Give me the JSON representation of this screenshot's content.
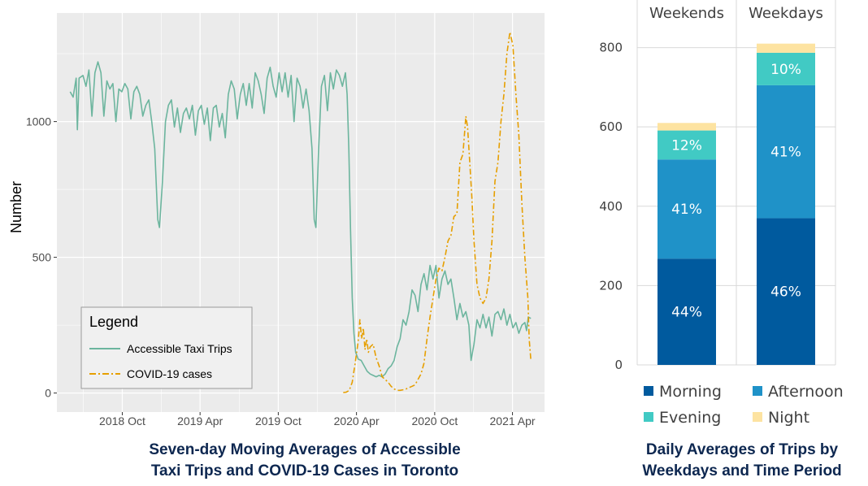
{
  "chart_data": [
    {
      "type": "line",
      "title": "Seven-day Moving Averages of Accessible Taxi Trips and COVID-19 Cases in Toronto",
      "ylabel": "Number",
      "xlabel": "",
      "x_tick_labels": [
        "2018 Oct",
        "2019 Apr",
        "2019 Oct",
        "2020 Apr",
        "2020 Oct",
        "2021 Apr"
      ],
      "y_ticks": [
        0,
        500,
        1000
      ],
      "xlim": [
        "2018-05-01",
        "2021-06-15"
      ],
      "ylim": [
        -70,
        1400
      ],
      "grid": true,
      "legend": {
        "title": "Legend",
        "position": "bottom-left"
      },
      "series": [
        {
          "name": "Accessible Taxi Trips",
          "color": "#6cb59e",
          "style": "solid",
          "points": [
            [
              "2018-06-01",
              1110
            ],
            [
              "2018-06-08",
              1090
            ],
            [
              "2018-06-15",
              1160
            ],
            [
              "2018-06-18",
              970
            ],
            [
              "2018-06-22",
              1160
            ],
            [
              "2018-07-01",
              1170
            ],
            [
              "2018-07-08",
              1130
            ],
            [
              "2018-07-15",
              1190
            ],
            [
              "2018-07-22",
              1020
            ],
            [
              "2018-07-29",
              1180
            ],
            [
              "2018-08-05",
              1220
            ],
            [
              "2018-08-12",
              1180
            ],
            [
              "2018-08-19",
              1020
            ],
            [
              "2018-08-26",
              1150
            ],
            [
              "2018-09-02",
              1120
            ],
            [
              "2018-09-09",
              1140
            ],
            [
              "2018-09-16",
              1000
            ],
            [
              "2018-09-23",
              1120
            ],
            [
              "2018-09-30",
              1110
            ],
            [
              "2018-10-07",
              1140
            ],
            [
              "2018-10-14",
              1120
            ],
            [
              "2018-10-21",
              1010
            ],
            [
              "2018-10-28",
              1110
            ],
            [
              "2018-11-04",
              1130
            ],
            [
              "2018-11-11",
              1100
            ],
            [
              "2018-11-18",
              1020
            ],
            [
              "2018-11-25",
              1060
            ],
            [
              "2018-12-02",
              1080
            ],
            [
              "2018-12-09",
              1000
            ],
            [
              "2018-12-16",
              900
            ],
            [
              "2018-12-23",
              640
            ],
            [
              "2018-12-27",
              610
            ],
            [
              "2019-01-03",
              780
            ],
            [
              "2019-01-10",
              1000
            ],
            [
              "2019-01-17",
              1060
            ],
            [
              "2019-01-24",
              1080
            ],
            [
              "2019-01-31",
              980
            ],
            [
              "2019-02-07",
              1050
            ],
            [
              "2019-02-14",
              960
            ],
            [
              "2019-02-21",
              1030
            ],
            [
              "2019-02-28",
              1050
            ],
            [
              "2019-03-07",
              1010
            ],
            [
              "2019-03-14",
              1060
            ],
            [
              "2019-03-21",
              950
            ],
            [
              "2019-03-28",
              1040
            ],
            [
              "2019-04-04",
              1060
            ],
            [
              "2019-04-11",
              990
            ],
            [
              "2019-04-18",
              1050
            ],
            [
              "2019-04-25",
              930
            ],
            [
              "2019-05-02",
              1050
            ],
            [
              "2019-05-09",
              1060
            ],
            [
              "2019-05-16",
              980
            ],
            [
              "2019-05-23",
              1030
            ],
            [
              "2019-05-30",
              940
            ],
            [
              "2019-06-06",
              1100
            ],
            [
              "2019-06-13",
              1150
            ],
            [
              "2019-06-20",
              1120
            ],
            [
              "2019-06-27",
              1010
            ],
            [
              "2019-07-04",
              1100
            ],
            [
              "2019-07-11",
              1140
            ],
            [
              "2019-07-18",
              1060
            ],
            [
              "2019-07-25",
              1140
            ],
            [
              "2019-08-01",
              1050
            ],
            [
              "2019-08-08",
              1180
            ],
            [
              "2019-08-15",
              1150
            ],
            [
              "2019-08-22",
              1100
            ],
            [
              "2019-08-29",
              1030
            ],
            [
              "2019-09-05",
              1160
            ],
            [
              "2019-09-12",
              1200
            ],
            [
              "2019-09-19",
              1130
            ],
            [
              "2019-09-26",
              1090
            ],
            [
              "2019-10-03",
              1180
            ],
            [
              "2019-10-10",
              1110
            ],
            [
              "2019-10-17",
              1180
            ],
            [
              "2019-10-24",
              1090
            ],
            [
              "2019-10-31",
              1170
            ],
            [
              "2019-11-07",
              1000
            ],
            [
              "2019-11-14",
              1160
            ],
            [
              "2019-11-21",
              1130
            ],
            [
              "2019-11-28",
              1050
            ],
            [
              "2019-12-05",
              1120
            ],
            [
              "2019-12-12",
              1040
            ],
            [
              "2019-12-19",
              900
            ],
            [
              "2019-12-24",
              640
            ],
            [
              "2019-12-28",
              610
            ],
            [
              "2020-01-03",
              880
            ],
            [
              "2020-01-10",
              1130
            ],
            [
              "2020-01-17",
              1170
            ],
            [
              "2020-01-24",
              1040
            ],
            [
              "2020-01-31",
              1180
            ],
            [
              "2020-02-07",
              1120
            ],
            [
              "2020-02-14",
              1190
            ],
            [
              "2020-02-21",
              1170
            ],
            [
              "2020-02-28",
              1130
            ],
            [
              "2020-03-06",
              1180
            ],
            [
              "2020-03-10",
              1100
            ],
            [
              "2020-03-14",
              900
            ],
            [
              "2020-03-18",
              600
            ],
            [
              "2020-03-22",
              350
            ],
            [
              "2020-03-26",
              220
            ],
            [
              "2020-03-30",
              150
            ],
            [
              "2020-04-05",
              125
            ],
            [
              "2020-04-12",
              120
            ],
            [
              "2020-04-19",
              100
            ],
            [
              "2020-04-26",
              80
            ],
            [
              "2020-05-03",
              70
            ],
            [
              "2020-05-10",
              65
            ],
            [
              "2020-05-17",
              60
            ],
            [
              "2020-05-24",
              65
            ],
            [
              "2020-05-31",
              60
            ],
            [
              "2020-06-07",
              70
            ],
            [
              "2020-06-14",
              90
            ],
            [
              "2020-06-21",
              100
            ],
            [
              "2020-06-28",
              120
            ],
            [
              "2020-07-05",
              170
            ],
            [
              "2020-07-12",
              200
            ],
            [
              "2020-07-19",
              270
            ],
            [
              "2020-07-26",
              250
            ],
            [
              "2020-08-02",
              300
            ],
            [
              "2020-08-09",
              380
            ],
            [
              "2020-08-16",
              360
            ],
            [
              "2020-08-23",
              300
            ],
            [
              "2020-08-30",
              400
            ],
            [
              "2020-09-06",
              440
            ],
            [
              "2020-09-13",
              380
            ],
            [
              "2020-09-20",
              470
            ],
            [
              "2020-09-27",
              420
            ],
            [
              "2020-10-04",
              470
            ],
            [
              "2020-10-11",
              350
            ],
            [
              "2020-10-18",
              420
            ],
            [
              "2020-10-25",
              450
            ],
            [
              "2020-11-01",
              400
            ],
            [
              "2020-11-08",
              420
            ],
            [
              "2020-11-15",
              350
            ],
            [
              "2020-11-22",
              270
            ],
            [
              "2020-11-29",
              330
            ],
            [
              "2020-12-06",
              280
            ],
            [
              "2020-12-13",
              300
            ],
            [
              "2020-12-20",
              250
            ],
            [
              "2020-12-25",
              120
            ],
            [
              "2021-01-01",
              180
            ],
            [
              "2021-01-08",
              270
            ],
            [
              "2021-01-15",
              240
            ],
            [
              "2021-01-22",
              290
            ],
            [
              "2021-01-29",
              240
            ],
            [
              "2021-02-05",
              280
            ],
            [
              "2021-02-12",
              210
            ],
            [
              "2021-02-19",
              290
            ],
            [
              "2021-02-26",
              300
            ],
            [
              "2021-03-05",
              270
            ],
            [
              "2021-03-12",
              310
            ],
            [
              "2021-03-19",
              250
            ],
            [
              "2021-03-26",
              290
            ],
            [
              "2021-04-02",
              240
            ],
            [
              "2021-04-09",
              260
            ],
            [
              "2021-04-16",
              220
            ],
            [
              "2021-04-23",
              250
            ],
            [
              "2021-04-30",
              260
            ],
            [
              "2021-05-04",
              230
            ],
            [
              "2021-05-08",
              280
            ],
            [
              "2021-05-14",
              275
            ]
          ]
        },
        {
          "name": "COVID-19 cases",
          "color": "#e69f00",
          "style": "dashdot",
          "points": [
            [
              "2020-03-01",
              2
            ],
            [
              "2020-03-08",
              3
            ],
            [
              "2020-03-15",
              10
            ],
            [
              "2020-03-22",
              40
            ],
            [
              "2020-03-29",
              110
            ],
            [
              "2020-04-05",
              190
            ],
            [
              "2020-04-09",
              270
            ],
            [
              "2020-04-13",
              200
            ],
            [
              "2020-04-17",
              240
            ],
            [
              "2020-04-21",
              160
            ],
            [
              "2020-04-25",
              200
            ],
            [
              "2020-04-29",
              150
            ],
            [
              "2020-05-03",
              170
            ],
            [
              "2020-05-10",
              180
            ],
            [
              "2020-05-17",
              130
            ],
            [
              "2020-05-24",
              100
            ],
            [
              "2020-05-31",
              60
            ],
            [
              "2020-06-07",
              50
            ],
            [
              "2020-06-14",
              40
            ],
            [
              "2020-06-21",
              25
            ],
            [
              "2020-06-28",
              15
            ],
            [
              "2020-07-05",
              10
            ],
            [
              "2020-07-12",
              10
            ],
            [
              "2020-07-19",
              12
            ],
            [
              "2020-07-26",
              15
            ],
            [
              "2020-08-02",
              20
            ],
            [
              "2020-08-09",
              25
            ],
            [
              "2020-08-16",
              30
            ],
            [
              "2020-08-23",
              50
            ],
            [
              "2020-08-30",
              70
            ],
            [
              "2020-09-06",
              110
            ],
            [
              "2020-09-13",
              200
            ],
            [
              "2020-09-20",
              280
            ],
            [
              "2020-09-27",
              350
            ],
            [
              "2020-10-04",
              420
            ],
            [
              "2020-10-11",
              460
            ],
            [
              "2020-10-18",
              450
            ],
            [
              "2020-10-25",
              500
            ],
            [
              "2020-11-01",
              560
            ],
            [
              "2020-11-08",
              580
            ],
            [
              "2020-11-15",
              650
            ],
            [
              "2020-11-22",
              660
            ],
            [
              "2020-11-29",
              850
            ],
            [
              "2020-12-06",
              880
            ],
            [
              "2020-12-13",
              1020
            ],
            [
              "2020-12-17",
              980
            ],
            [
              "2020-12-22",
              850
            ],
            [
              "2020-12-27",
              720
            ],
            [
              "2021-01-01",
              560
            ],
            [
              "2021-01-08",
              400
            ],
            [
              "2021-01-15",
              350
            ],
            [
              "2021-01-22",
              330
            ],
            [
              "2021-01-29",
              350
            ],
            [
              "2021-02-05",
              420
            ],
            [
              "2021-02-12",
              560
            ],
            [
              "2021-02-19",
              780
            ],
            [
              "2021-02-26",
              850
            ],
            [
              "2021-03-05",
              1000
            ],
            [
              "2021-03-12",
              1100
            ],
            [
              "2021-03-19",
              1250
            ],
            [
              "2021-03-26",
              1330
            ],
            [
              "2021-04-02",
              1280
            ],
            [
              "2021-04-09",
              1100
            ],
            [
              "2021-04-16",
              950
            ],
            [
              "2021-04-23",
              700
            ],
            [
              "2021-04-30",
              500
            ],
            [
              "2021-05-07",
              350
            ],
            [
              "2021-05-10",
              200
            ],
            [
              "2021-05-14",
              120
            ]
          ]
        }
      ]
    },
    {
      "type": "bar",
      "stacked": true,
      "title": "Daily Averages of Trips by Weekdays and Time Period",
      "categories": [
        "Weekends",
        "Weekdays"
      ],
      "y_ticks": [
        0,
        200,
        400,
        600,
        800
      ],
      "ylim": [
        0,
        920
      ],
      "grid": true,
      "legend": {
        "position": "bottom"
      },
      "series": [
        {
          "name": "Morning",
          "color": "#005a9e",
          "values": [
            268,
            370
          ],
          "labels": [
            "44%",
            "46%"
          ]
        },
        {
          "name": "Afternoon",
          "color": "#1f92c8",
          "values": [
            250,
            335
          ],
          "labels": [
            "41%",
            "41%"
          ]
        },
        {
          "name": "Evening",
          "color": "#41cac4",
          "values": [
            73,
            82
          ],
          "labels": [
            "12%",
            "10%"
          ]
        },
        {
          "name": "Night",
          "color": "#fde3a1",
          "values": [
            19,
            23
          ],
          "labels": [
            "",
            ""
          ]
        }
      ]
    }
  ],
  "captions": {
    "left_line1": "Seven-day Moving Averages of Accessible",
    "left_line2": "Taxi Trips and COVID-19 Cases in Toronto",
    "right_line1": "Daily Averages of Trips by",
    "right_line2": "Weekdays and Time Period"
  }
}
